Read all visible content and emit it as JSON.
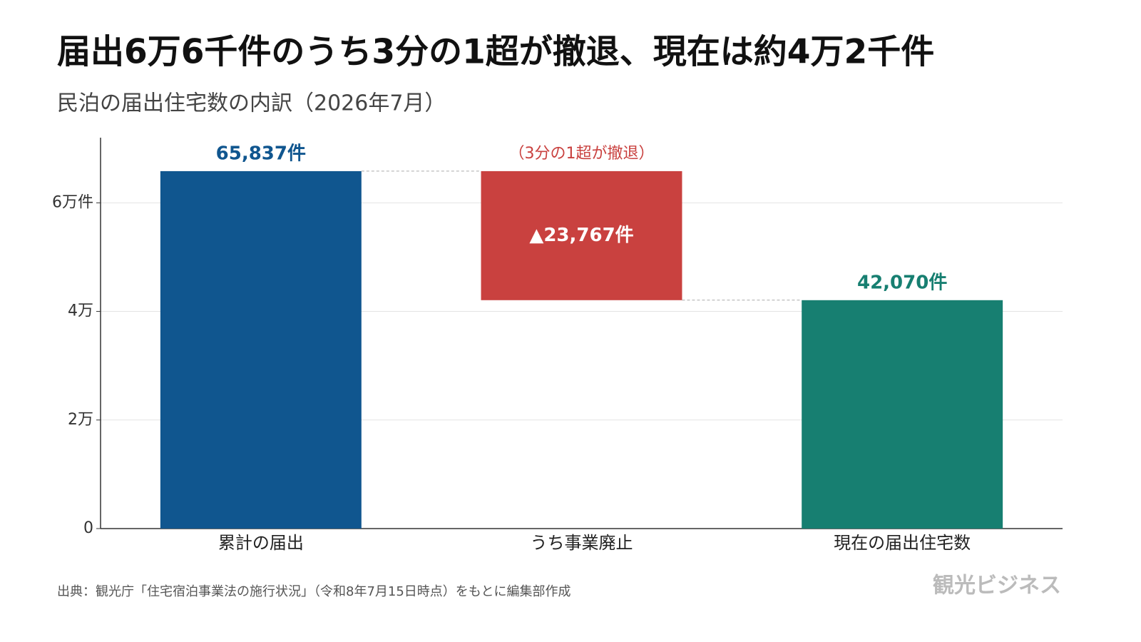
{
  "chart_data": {
    "type": "waterfall",
    "title": "届出6万6千件のうち3分の1超が撤退、現在は約4万2千件",
    "subtitle": "民泊の届出住宅数の内訳（2026年7月）",
    "categories": [
      "累計の届出",
      "うち事業廃止",
      "現在の届出住宅数"
    ],
    "values": [
      65837,
      -23767,
      42070
    ],
    "value_labels": [
      "65,837件",
      "▲23,767件",
      "42,070件"
    ],
    "measure": [
      "absolute",
      "relative",
      "total"
    ],
    "colors": [
      "#10568f",
      "#c9413f",
      "#177f71"
    ],
    "annotation": "（3分の1超が撤退）",
    "ylim": [
      0,
      72000
    ],
    "yticks": [
      0,
      {
        "value": 20000,
        "label": "2万"
      },
      {
        "value": 40000,
        "label": "4万"
      },
      {
        "value": 60000,
        "label": "6万件"
      }
    ],
    "grid": true,
    "source": "出典：観光庁「住宅宿泊事業法の施行状況」（令和8年7月15日時点）をもとに編集部作成",
    "logo": "観光ビジネス"
  }
}
